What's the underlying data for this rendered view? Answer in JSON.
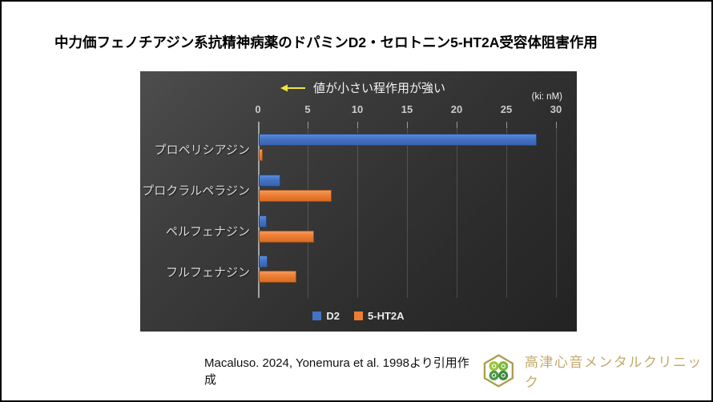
{
  "page": {
    "title": "中力価フェノチアジン系抗精神病薬のドパミンD2・セロトニン5-HT2A受容体阻害作用",
    "footer": {
      "citation": "Macaluso. 2024, Yonemura et al. 1998より引用作成",
      "clinic_name": "高津心音メンタルクリニック",
      "logo_icon": "hexagon-clover-logo"
    }
  },
  "chart_data": {
    "type": "bar",
    "orientation": "horizontal",
    "title": "中力価フェノチアジン系抗精神病薬のドパミンD2・セロトニン5-HT2A受容体阻害作用",
    "annotation": "値が小さい程作用が強い",
    "annotation_arrow": "left-arrow",
    "unit_label": "(ki: nM)",
    "categories": [
      "プロペリシアジン",
      "プロクラルペラジン",
      "ペルフェナジン",
      "フルフェナジン"
    ],
    "series": [
      {
        "name": "D2",
        "color": "#4472C4",
        "values": [
          28,
          2.2,
          0.8,
          0.9
        ]
      },
      {
        "name": "5-HT2A",
        "color": "#ED7D31",
        "values": [
          0.4,
          7.3,
          5.6,
          3.8
        ]
      }
    ],
    "x_ticks": [
      0,
      5,
      10,
      15,
      20,
      25,
      30
    ],
    "xlim": [
      0,
      30
    ],
    "xlabel": "(ki: nM)",
    "ylabel": "",
    "grid": true,
    "legend_position": "bottom",
    "background": "dark-gradient",
    "colors": {
      "panel_top": "#4d4d4d",
      "panel_bottom": "#232323",
      "tick_text": "#cbcbcb",
      "category_text": "#d9d9d9",
      "annotation_arrow": "#efe53a",
      "annotation_text": "#f5f5f5",
      "clinic_gold": "#c3a96e",
      "logo_green_light": "#9cc43e",
      "logo_green_dark": "#4b9a45",
      "logo_outline": "#ac9c4e"
    }
  }
}
